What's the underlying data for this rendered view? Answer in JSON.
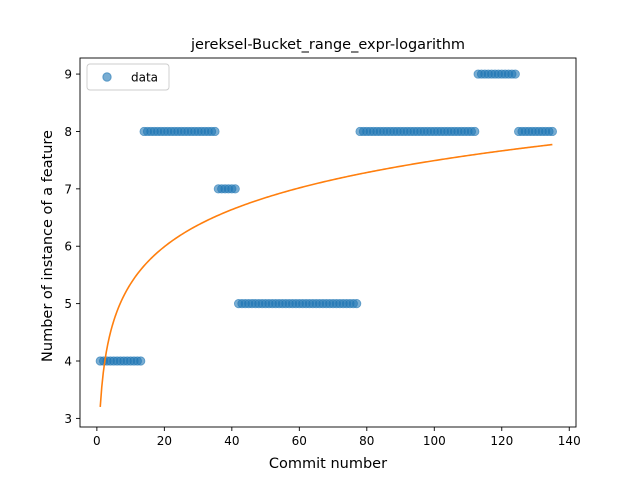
{
  "chart_data": {
    "type": "scatter",
    "title": "jereksel-Bucket_range_expr-logarithm",
    "xlabel": "Commit number",
    "ylabel": "Number of instance of a feature",
    "xlim": [
      -5,
      142
    ],
    "ylim": [
      2.85,
      9.28
    ],
    "xticks": [
      0,
      20,
      40,
      60,
      80,
      100,
      120,
      140
    ],
    "yticks": [
      3,
      4,
      5,
      6,
      7,
      8,
      9
    ],
    "grid": false,
    "legend": {
      "position": "top-left",
      "entries": [
        "data"
      ]
    },
    "colors": {
      "data": "#1f77b4",
      "fit": "#ff7f0e"
    },
    "series": [
      {
        "name": "data",
        "kind": "scatter",
        "segments": [
          {
            "x_start": 1,
            "x_end": 13,
            "y": 4
          },
          {
            "x_start": 14,
            "x_end": 35,
            "y": 8
          },
          {
            "x_start": 36,
            "x_end": 41,
            "y": 7
          },
          {
            "x_start": 42,
            "x_end": 77,
            "y": 5
          },
          {
            "x_start": 78,
            "x_end": 112,
            "y": 8
          },
          {
            "x_start": 113,
            "x_end": 124,
            "y": 9
          },
          {
            "x_start": 125,
            "x_end": 135,
            "y": 8
          }
        ]
      },
      {
        "kind": "line",
        "fit": {
          "model": "logarithmic",
          "a": 3.2,
          "b": 0.932,
          "x_start": 1,
          "x_end": 135
        }
      }
    ]
  }
}
